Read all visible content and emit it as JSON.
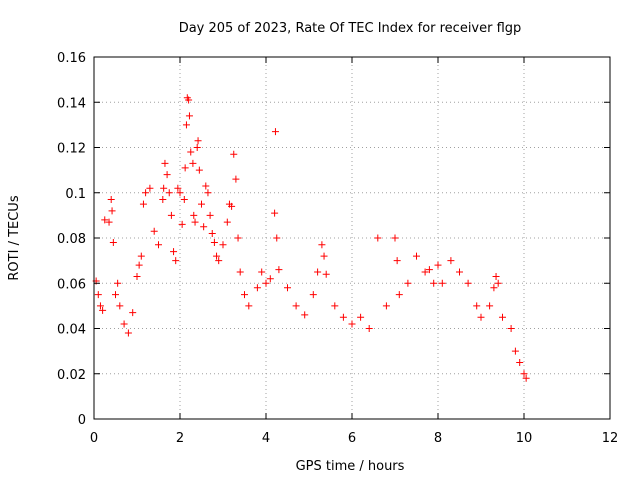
{
  "chart_data": {
    "type": "scatter",
    "title": "Day 205 of 2023, Rate Of TEC Index for receiver flgp",
    "xlabel": "GPS time / hours",
    "ylabel": "ROTI / TECUs",
    "xlim": [
      0,
      12
    ],
    "ylim": [
      0,
      0.16
    ],
    "xticks": [
      "0",
      "2",
      "4",
      "6",
      "8",
      "10",
      "12"
    ],
    "xtick_values": [
      0,
      2,
      4,
      6,
      8,
      10,
      12
    ],
    "yticks": [
      "0",
      "0.02",
      "0.04",
      "0.06",
      "0.08",
      "0.1",
      "0.12",
      "0.14",
      "0.16"
    ],
    "ytick_values": [
      0,
      0.02,
      0.04,
      0.06,
      0.08,
      0.1,
      0.12,
      0.14,
      0.16
    ],
    "grid": true,
    "marker": "+",
    "color": "#ff0000",
    "series": [
      {
        "name": "ROTI",
        "points": [
          [
            0.05,
            0.061
          ],
          [
            0.1,
            0.055
          ],
          [
            0.15,
            0.05
          ],
          [
            0.2,
            0.048
          ],
          [
            0.25,
            0.088
          ],
          [
            0.35,
            0.087
          ],
          [
            0.4,
            0.097
          ],
          [
            0.42,
            0.092
          ],
          [
            0.45,
            0.078
          ],
          [
            0.5,
            0.055
          ],
          [
            0.55,
            0.06
          ],
          [
            0.6,
            0.05
          ],
          [
            0.7,
            0.042
          ],
          [
            0.8,
            0.038
          ],
          [
            0.9,
            0.047
          ],
          [
            1.0,
            0.063
          ],
          [
            1.05,
            0.068
          ],
          [
            1.1,
            0.072
          ],
          [
            1.15,
            0.095
          ],
          [
            1.2,
            0.1
          ],
          [
            1.3,
            0.102
          ],
          [
            1.4,
            0.083
          ],
          [
            1.5,
            0.077
          ],
          [
            1.6,
            0.097
          ],
          [
            1.62,
            0.102
          ],
          [
            1.65,
            0.113
          ],
          [
            1.7,
            0.108
          ],
          [
            1.75,
            0.1
          ],
          [
            1.8,
            0.09
          ],
          [
            1.85,
            0.074
          ],
          [
            1.9,
            0.07
          ],
          [
            1.95,
            0.102
          ],
          [
            2.0,
            0.1
          ],
          [
            2.05,
            0.086
          ],
          [
            2.1,
            0.097
          ],
          [
            2.12,
            0.111
          ],
          [
            2.15,
            0.13
          ],
          [
            2.17,
            0.142
          ],
          [
            2.2,
            0.141
          ],
          [
            2.22,
            0.134
          ],
          [
            2.25,
            0.118
          ],
          [
            2.3,
            0.113
          ],
          [
            2.32,
            0.09
          ],
          [
            2.35,
            0.087
          ],
          [
            2.4,
            0.12
          ],
          [
            2.42,
            0.123
          ],
          [
            2.45,
            0.11
          ],
          [
            2.5,
            0.095
          ],
          [
            2.55,
            0.085
          ],
          [
            2.6,
            0.103
          ],
          [
            2.65,
            0.1
          ],
          [
            2.7,
            0.09
          ],
          [
            2.75,
            0.082
          ],
          [
            2.8,
            0.078
          ],
          [
            2.85,
            0.072
          ],
          [
            2.9,
            0.07
          ],
          [
            3.0,
            0.077
          ],
          [
            3.1,
            0.087
          ],
          [
            3.15,
            0.095
          ],
          [
            3.2,
            0.094
          ],
          [
            3.25,
            0.117
          ],
          [
            3.3,
            0.106
          ],
          [
            3.35,
            0.08
          ],
          [
            3.4,
            0.065
          ],
          [
            3.5,
            0.055
          ],
          [
            3.6,
            0.05
          ],
          [
            3.8,
            0.058
          ],
          [
            3.9,
            0.065
          ],
          [
            4.0,
            0.06
          ],
          [
            4.1,
            0.062
          ],
          [
            4.2,
            0.091
          ],
          [
            4.22,
            0.127
          ],
          [
            4.25,
            0.08
          ],
          [
            4.3,
            0.066
          ],
          [
            4.5,
            0.058
          ],
          [
            4.7,
            0.05
          ],
          [
            4.9,
            0.046
          ],
          [
            5.1,
            0.055
          ],
          [
            5.2,
            0.065
          ],
          [
            5.3,
            0.077
          ],
          [
            5.35,
            0.072
          ],
          [
            5.4,
            0.064
          ],
          [
            5.6,
            0.05
          ],
          [
            5.8,
            0.045
          ],
          [
            6.0,
            0.042
          ],
          [
            6.2,
            0.045
          ],
          [
            6.4,
            0.04
          ],
          [
            6.6,
            0.08
          ],
          [
            6.8,
            0.05
          ],
          [
            7.0,
            0.08
          ],
          [
            7.05,
            0.07
          ],
          [
            7.1,
            0.055
          ],
          [
            7.3,
            0.06
          ],
          [
            7.5,
            0.072
          ],
          [
            7.7,
            0.065
          ],
          [
            7.8,
            0.066
          ],
          [
            7.9,
            0.06
          ],
          [
            8.0,
            0.068
          ],
          [
            8.1,
            0.06
          ],
          [
            8.3,
            0.07
          ],
          [
            8.5,
            0.065
          ],
          [
            8.7,
            0.06
          ],
          [
            8.9,
            0.05
          ],
          [
            9.0,
            0.045
          ],
          [
            9.2,
            0.05
          ],
          [
            9.3,
            0.058
          ],
          [
            9.35,
            0.063
          ],
          [
            9.4,
            0.06
          ],
          [
            9.5,
            0.045
          ],
          [
            9.7,
            0.04
          ],
          [
            9.8,
            0.03
          ],
          [
            9.9,
            0.025
          ],
          [
            10.0,
            0.02
          ],
          [
            10.05,
            0.018
          ]
        ]
      }
    ]
  }
}
